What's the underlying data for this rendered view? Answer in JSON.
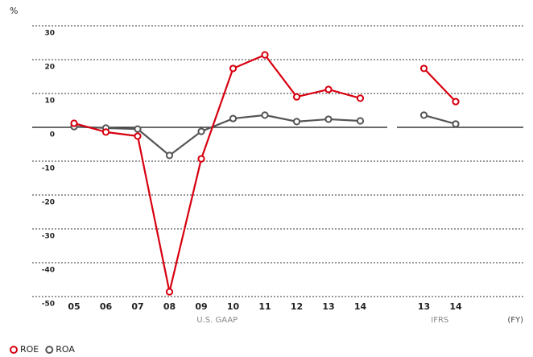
{
  "chart_data": {
    "type": "line",
    "y_label": "%",
    "x_label": "(FY)",
    "categories": [
      "05",
      "06",
      "07",
      "08",
      "09",
      "10",
      "11",
      "12",
      "13",
      "14",
      null,
      "13",
      "14"
    ],
    "groups": [
      "U.S. GAAP",
      "IFRS"
    ],
    "series": [
      {
        "name": "ROE",
        "color": "#d7000f",
        "values": [
          1.2,
          -1.4,
          -2.6,
          -48.6,
          -9.3,
          17.4,
          21.4,
          9.0,
          11.2,
          8.6,
          null,
          17.4,
          7.6
        ]
      },
      {
        "name": "ROA",
        "color": "#555555",
        "values": [
          0.2,
          -0.2,
          -0.5,
          -8.3,
          -1.2,
          2.6,
          3.6,
          1.7,
          2.4,
          1.9,
          null,
          3.6,
          1.0
        ]
      }
    ],
    "ylim": [
      -50,
      30
    ],
    "yticks": [
      30,
      20,
      10,
      0,
      -10,
      -20,
      -30,
      -40,
      -50
    ],
    "grid": true
  }
}
